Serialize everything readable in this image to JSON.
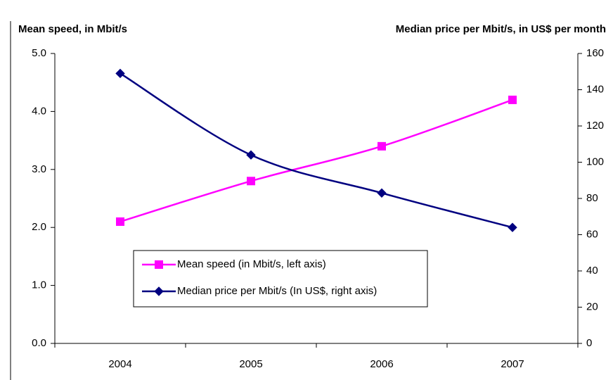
{
  "chart_data": {
    "type": "line",
    "y_label": "Mean speed, in Mbit/s",
    "y2_label": "Median price per Mbit/s, in US$ per month",
    "categories": [
      "2004",
      "2005",
      "2006",
      "2007"
    ],
    "series": [
      {
        "name": "Mean speed (in Mbit/s, left axis)",
        "color": "#ff00ff",
        "marker": "square",
        "values": [
          2.1,
          2.8,
          3.4,
          4.2
        ]
      },
      {
        "name": "Median price per Mbit/s (In US$, right axis)",
        "color": "#000080",
        "marker": "diamond",
        "axis": "y2",
        "values": [
          149,
          104,
          83,
          64
        ]
      }
    ],
    "ylim": [
      0,
      5
    ],
    "yticks": [
      {
        "value": 0,
        "label": "0.0"
      },
      {
        "value": 1,
        "label": "1.0"
      },
      {
        "value": 2,
        "label": "2.0"
      },
      {
        "value": 3,
        "label": "3.0"
      },
      {
        "value": 4,
        "label": "4.0"
      },
      {
        "value": 5,
        "label": "5.0"
      }
    ],
    "y2lim": [
      0,
      160
    ],
    "y2ticks": [
      0,
      20,
      40,
      60,
      80,
      100,
      120,
      140,
      160
    ],
    "legend": "lower-left",
    "grid": false
  }
}
